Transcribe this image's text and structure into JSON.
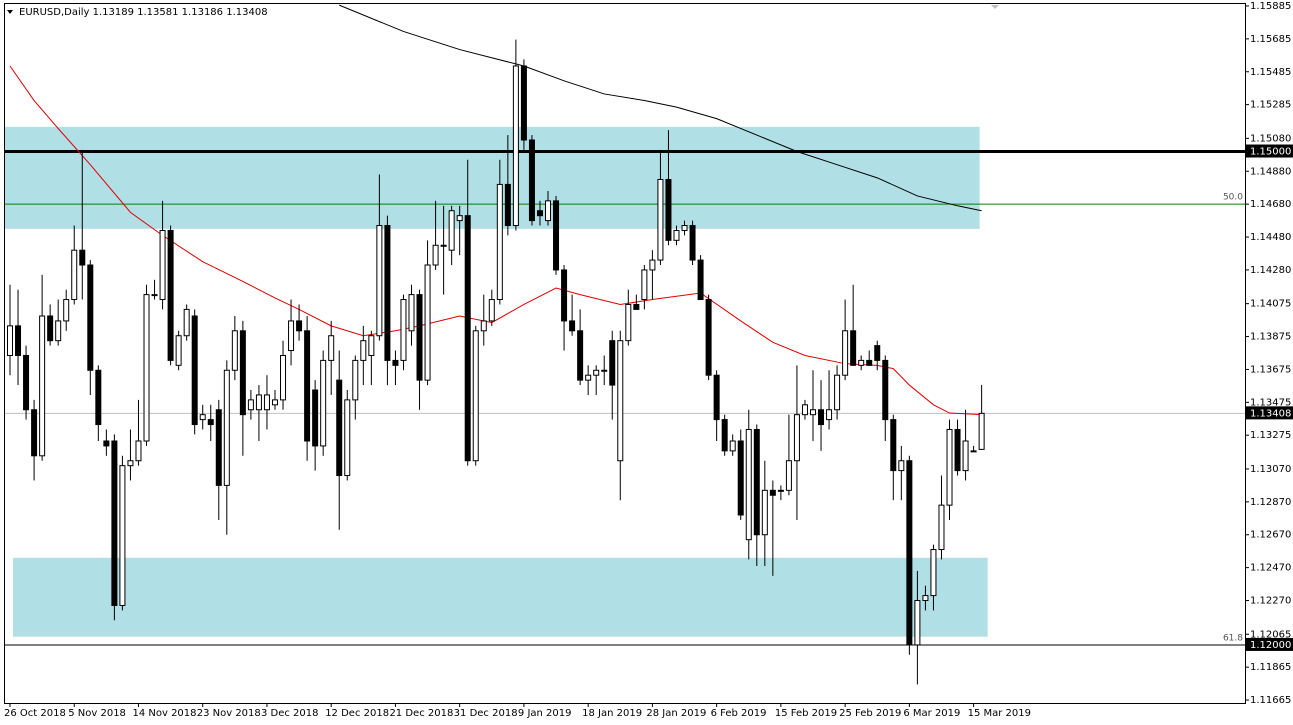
{
  "chart_data": {
    "type": "candlestick",
    "title": "EURUSD,Daily  1.13189 1.13581 1.13186 1.13408",
    "categories": [
      "26 Oct 2018",
      null,
      null,
      null,
      null,
      null,
      null,
      null,
      "5 Nov 2018",
      null,
      null,
      null,
      null,
      null,
      null,
      null,
      "14 Nov 2018",
      null,
      null,
      null,
      null,
      null,
      null,
      null,
      "23 Nov 2018",
      null,
      null,
      null,
      null,
      null,
      null,
      null,
      "3 Dec 2018",
      null,
      null,
      null,
      null,
      null,
      null,
      null,
      "12 Dec 2018",
      null,
      null,
      null,
      null,
      null,
      null,
      null,
      "21 Dec 2018",
      null,
      null,
      null,
      null,
      null,
      null,
      null,
      "31 Dec 2018",
      null,
      null,
      null,
      null,
      null,
      null,
      null,
      "9 Jan 2019",
      null,
      null,
      null,
      null,
      null,
      null,
      null,
      "18 Jan 2019",
      null,
      null,
      null,
      null,
      null,
      null,
      null,
      "28 Jan 2019",
      null,
      null,
      null,
      null,
      null,
      null,
      null,
      "6 Feb 2019",
      null,
      null,
      null,
      null,
      null,
      null,
      null,
      "15 Feb 2019",
      null,
      null,
      null,
      null,
      null,
      null,
      null,
      "25 Feb 2019",
      null,
      null,
      null,
      null,
      null,
      null,
      null,
      "6 Mar 2019",
      null,
      null,
      null,
      null,
      null,
      null,
      null,
      "15 Mar 2019",
      null
    ],
    "open": [
      1.1376,
      1.1394,
      1.1376,
      1.1343,
      1.1315,
      1.14,
      1.1385,
      1.1397,
      1.141,
      1.144,
      1.1431,
      1.1367,
      1.1324,
      1.1324,
      1.1224,
      1.1309,
      1.1312,
      1.1324,
      1.1413,
      1.141,
      1.1452,
      1.137,
      1.1388,
      1.14,
      1.1337,
      1.1337,
      1.1343,
      1.1297,
      1.1367,
      1.1391,
      1.1343,
      1.1343,
      1.1343,
      1.1346,
      1.1349,
      1.1379,
      1.1397,
      1.1391,
      1.1355,
      1.1321,
      1.1373,
      1.1361,
      1.1303,
      1.1349,
      1.1373,
      1.1376,
      1.1388,
      1.1455,
      1.1373,
      1.1373,
      1.1391,
      1.1413,
      1.1361,
      1.1431,
      1.1443,
      1.144,
      1.1458,
      1.1461,
      1.1312,
      1.1391,
      1.1397,
      1.141,
      1.148,
      1.1455,
      1.1552,
      1.1507,
      1.1464,
      1.1458,
      1.147,
      1.1428,
      1.1397,
      1.1391,
      1.1361,
      1.1364,
      1.1367,
      1.1385,
      1.1312,
      1.1385,
      1.1407,
      1.141,
      1.1428,
      1.1434,
      1.1483,
      1.1446,
      1.1452,
      1.1455,
      1.1434,
      1.141,
      1.1364,
      1.1337,
      1.1318,
      1.1324,
      1.1264,
      1.1331,
      1.1267,
      1.1294,
      1.1294,
      1.1294,
      1.1312,
      1.134,
      1.134,
      1.1343,
      1.1337,
      1.1343,
      1.1364,
      1.1391,
      1.137,
      1.1373,
      1.1382,
      1.1373,
      1.1337,
      1.1306,
      1.1312,
      1.12,
      1.1227,
      1.123,
      1.1258,
      1.1285,
      1.1331,
      1.1306,
      1.1318,
      1.13189
    ],
    "high": [
      1.1419,
      1.1416,
      1.1382,
      1.1349,
      1.1425,
      1.1407,
      1.141,
      1.1416,
      1.1455,
      1.1501,
      1.1434,
      1.137,
      1.1331,
      1.1328,
      1.1315,
      1.1331,
      1.1349,
      1.1419,
      1.1422,
      1.147,
      1.1455,
      1.1391,
      1.1407,
      1.1404,
      1.1346,
      1.1346,
      1.1349,
      1.1373,
      1.14,
      1.1397,
      1.1355,
      1.1358,
      1.1364,
      1.1355,
      1.1385,
      1.141,
      1.1407,
      1.14,
      1.1361,
      1.1379,
      1.1397,
      1.1379,
      1.1355,
      1.1376,
      1.1394,
      1.1391,
      1.1486,
      1.1461,
      1.1379,
      1.1413,
      1.1419,
      1.1416,
      1.1446,
      1.147,
      1.1467,
      1.1467,
      1.1467,
      1.1495,
      1.1394,
      1.1413,
      1.1416,
      1.1495,
      1.151,
      1.1568,
      1.1556,
      1.151,
      1.147,
      1.1476,
      1.1473,
      1.1431,
      1.1413,
      1.1404,
      1.137,
      1.137,
      1.1376,
      1.1391,
      1.1391,
      1.1416,
      1.1413,
      1.1431,
      1.144,
      1.1501,
      1.1513,
      1.1455,
      1.1458,
      1.1458,
      1.1437,
      1.1413,
      1.1367,
      1.134,
      1.1328,
      1.1331,
      1.1343,
      1.1334,
      1.1312,
      1.13,
      1.1297,
      1.134,
      1.137,
      1.1349,
      1.1367,
      1.1361,
      1.1367,
      1.137,
      1.141,
      1.1419,
      1.1376,
      1.1379,
      1.1385,
      1.1376,
      1.134,
      1.1321,
      1.1315,
      1.1245,
      1.1236,
      1.1261,
      1.1303,
      1.1337,
      1.1337,
      1.1343,
      1.1321,
      1.13581
    ],
    "low": [
      1.1364,
      1.1358,
      1.1337,
      1.13,
      1.1312,
      1.1382,
      1.1382,
      1.1391,
      1.1407,
      1.141,
      1.1352,
      1.1324,
      1.1315,
      1.1215,
      1.1221,
      1.13,
      1.1309,
      1.1321,
      1.141,
      1.1404,
      1.137,
      1.1367,
      1.1385,
      1.1328,
      1.1331,
      1.1324,
      1.1276,
      1.1267,
      1.1361,
      1.1315,
      1.1337,
      1.1324,
      1.1331,
      1.1343,
      1.1343,
      1.137,
      1.1385,
      1.1312,
      1.1306,
      1.1315,
      1.1352,
      1.127,
      1.13,
      1.1337,
      1.1358,
      1.1358,
      1.1385,
      1.1358,
      1.1358,
      1.1367,
      1.1382,
      1.1343,
      1.1358,
      1.1428,
      1.1413,
      1.1431,
      1.1437,
      1.1309,
      1.1309,
      1.1382,
      1.1394,
      1.1407,
      1.1449,
      1.1452,
      1.1501,
      1.1455,
      1.1455,
      1.1455,
      1.1425,
      1.1379,
      1.1388,
      1.1358,
      1.1352,
      1.1352,
      1.1358,
      1.1337,
      1.1288,
      1.1382,
      1.1404,
      1.1404,
      1.141,
      1.1431,
      1.1443,
      1.1443,
      1.1449,
      1.1431,
      1.141,
      1.1361,
      1.1324,
      1.1315,
      1.1315,
      1.1276,
      1.1252,
      1.1248,
      1.1248,
      1.1242,
      1.1288,
      1.1291,
      1.1276,
      1.1337,
      1.1324,
      1.1318,
      1.1331,
      1.1337,
      1.1361,
      1.137,
      1.1367,
      1.137,
      1.1367,
      1.1324,
      1.1288,
      1.1288,
      1.1194,
      1.1176,
      1.1221,
      1.1221,
      1.1252,
      1.1276,
      1.1303,
      1.13,
      1.1318,
      1.13186
    ],
    "close": [
      1.1394,
      1.1376,
      1.1343,
      1.1315,
      1.14,
      1.1385,
      1.1397,
      1.141,
      1.144,
      1.1431,
      1.1367,
      1.1334,
      1.1321,
      1.1224,
      1.1309,
      1.1312,
      1.1324,
      1.1413,
      1.1413,
      1.1452,
      1.1373,
      1.1388,
      1.1404,
      1.1334,
      1.134,
      1.1334,
      1.1297,
      1.1367,
      1.1391,
      1.134,
      1.1349,
      1.1352,
      1.1352,
      1.1349,
      1.1376,
      1.1397,
      1.1391,
      1.1324,
      1.1321,
      1.1373,
      1.1388,
      1.1303,
      1.1349,
      1.1373,
      1.1385,
      1.1388,
      1.1455,
      1.1373,
      1.137,
      1.141,
      1.1413,
      1.1361,
      1.1431,
      1.1443,
      1.1443,
      1.1464,
      1.1461,
      1.1312,
      1.1391,
      1.1397,
      1.141,
      1.148,
      1.1455,
      1.1552,
      1.1507,
      1.1458,
      1.1461,
      1.147,
      1.1428,
      1.1397,
      1.1391,
      1.1361,
      1.1364,
      1.1367,
      1.1367,
      1.1358,
      1.1385,
      1.1407,
      1.1404,
      1.1428,
      1.1434,
      1.1483,
      1.1446,
      1.1452,
      1.1455,
      1.1434,
      1.141,
      1.1364,
      1.1337,
      1.1318,
      1.1324,
      1.1279,
      1.1331,
      1.1267,
      1.1294,
      1.1291,
      1.1294,
      1.1312,
      1.134,
      1.1346,
      1.1343,
      1.1334,
      1.1343,
      1.1364,
      1.1391,
      1.137,
      1.1373,
      1.137,
      1.1373,
      1.1337,
      1.1306,
      1.1312,
      1.12,
      1.1227,
      1.123,
      1.1258,
      1.1285,
      1.1331,
      1.1306,
      1.1324,
      1.1318,
      1.13408
    ],
    "up_color": "#ffffff",
    "down_color": "#000000",
    "ylim": [
      1.11647,
      1.15903
    ],
    "yticks": [
      1.15885,
      1.15685,
      1.15485,
      1.15285,
      {
        "value": 1.1508,
        "label": "1.15080"
      },
      {
        "value": 1.1488,
        "label": "1.14880"
      },
      {
        "value": 1.1468,
        "label": "1.14680"
      },
      {
        "value": 1.1448,
        "label": "1.14480"
      },
      {
        "value": 1.1428,
        "label": "1.14280"
      },
      1.14075,
      1.13875,
      1.13675,
      1.13475,
      1.13275,
      {
        "value": 1.1307,
        "label": "1.13070"
      },
      {
        "value": 1.1287,
        "label": "1.12870"
      },
      {
        "value": 1.1267,
        "label": "1.12670"
      },
      {
        "value": 1.1247,
        "label": "1.12470"
      },
      {
        "value": 1.1227,
        "label": "1.12270"
      },
      1.12065,
      1.11865,
      1.11665
    ],
    "zones": [
      {
        "color": "#b0dfe5",
        "from": 1.1453,
        "to": 1.1515
      },
      {
        "color": "#b0dfe5",
        "from": 1.1205,
        "to": 1.1253
      }
    ],
    "lines": [
      {
        "color": "#e00000",
        "x": [
          0,
          3,
          6,
          10,
          15,
          19,
          24,
          29,
          33,
          36,
          40,
          44,
          48,
          51,
          56,
          60,
          64,
          68,
          71,
          76,
          80,
          86,
          91,
          95,
          99,
          104,
          108,
          110,
          112,
          115,
          117,
          121
        ],
        "values": [
          1.1552,
          1.1531,
          1.1514,
          1.1492,
          1.1463,
          1.1449,
          1.1433,
          1.1421,
          1.1411,
          1.1404,
          1.1394,
          1.1388,
          1.1391,
          1.1394,
          1.14,
          1.1396,
          1.1407,
          1.1417,
          1.1413,
          1.1407,
          1.141,
          1.1414,
          1.1397,
          1.1384,
          1.1376,
          1.1371,
          1.137,
          1.1368,
          1.1358,
          1.1346,
          1.1341,
          1.134
        ]
      },
      {
        "color": "#000000",
        "x": [
          41,
          49,
          56,
          64,
          69,
          74,
          79,
          83,
          88,
          93,
          98,
          103,
          108,
          113,
          118,
          121
        ],
        "values": [
          1.1589,
          1.1573,
          1.1562,
          1.1552,
          1.1543,
          1.1535,
          1.1531,
          1.1527,
          1.152,
          1.151,
          1.15,
          1.1492,
          1.1484,
          1.1473,
          1.1467,
          1.1464
        ]
      }
    ],
    "fib_levels": [
      {
        "value": 1.1468,
        "label": "50.0",
        "color": "#008000"
      },
      {
        "value": 1.12,
        "label": "61.8",
        "color": "#008000"
      }
    ],
    "hlines": [
      {
        "value": 1.15,
        "label": "1.15000",
        "color": "#000000",
        "width": 3
      },
      {
        "value": 1.12,
        "label": "1.12000",
        "color": "#000000",
        "width": 1
      },
      {
        "value": 1.13408,
        "label": "1.13408",
        "color": "#c0c0c0",
        "width": 1
      }
    ]
  }
}
